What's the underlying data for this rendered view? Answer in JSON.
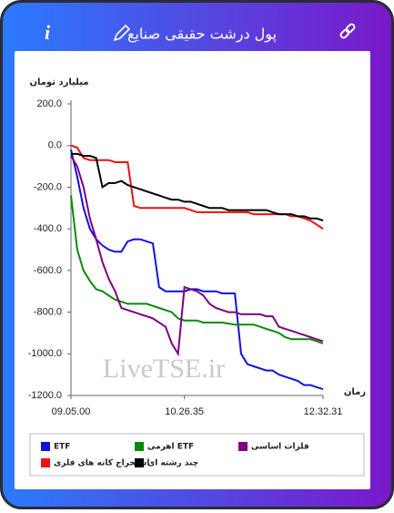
{
  "header": {
    "info": "i",
    "title": "پول درشت حقیقی صنایع"
  },
  "chart_data": {
    "type": "line",
    "ylabel": "میلیارد تومان",
    "xlabel": "زمان",
    "watermark": "LiveTSE.ir",
    "ylim": [
      -1200,
      200
    ],
    "yticks": [
      {
        "value": 200,
        "label": "200.0"
      },
      {
        "value": 0,
        "label": "0.0"
      },
      {
        "value": -200,
        "label": "-200.0"
      },
      {
        "value": -400,
        "label": "-400.0"
      },
      {
        "value": -600,
        "label": "-600.0"
      },
      {
        "value": -800,
        "label": "-800.0"
      },
      {
        "value": -1000,
        "label": "-1000.0"
      },
      {
        "value": -1200,
        "label": "-1200.0"
      }
    ],
    "categories": [
      "09.05.00",
      null,
      null,
      null,
      null,
      null,
      null,
      null,
      null,
      null,
      null,
      null,
      null,
      null,
      null,
      null,
      null,
      null,
      "10.26.35",
      null,
      null,
      null,
      null,
      null,
      null,
      null,
      null,
      null,
      null,
      null,
      null,
      null,
      null,
      null,
      null,
      null,
      null,
      null,
      null,
      null,
      "12.32.31"
    ],
    "grid": false,
    "series": [
      {
        "name": "ETF",
        "color": "#1010e0",
        "values": [
          -20,
          -150,
          -300,
          -400,
          -450,
          -480,
          -500,
          -510,
          -510,
          -460,
          -450,
          -450,
          -460,
          -470,
          -680,
          -700,
          -700,
          -700,
          -700,
          -690,
          -690,
          -700,
          -700,
          -700,
          -710,
          -710,
          -710,
          -1000,
          -1050,
          -1060,
          -1070,
          -1080,
          -1080,
          -1100,
          -1110,
          -1120,
          -1130,
          -1150,
          -1150,
          -1160,
          -1170
        ]
      },
      {
        "name": "اهرمی ETF",
        "color": "#0a8a0a",
        "values": [
          -240,
          -500,
          -600,
          -650,
          -690,
          -700,
          -720,
          -740,
          -750,
          -760,
          -760,
          -760,
          -760,
          -770,
          -780,
          -790,
          -800,
          -830,
          -840,
          -840,
          -840,
          -850,
          -850,
          -850,
          -850,
          -855,
          -860,
          -860,
          -860,
          -860,
          -870,
          -880,
          -890,
          -900,
          -920,
          -930,
          -930,
          -930,
          -930,
          -940,
          -950
        ]
      },
      {
        "name": "فلزات اساسی",
        "color": "#800080",
        "values": [
          -50,
          -100,
          -200,
          -350,
          -450,
          -560,
          -640,
          -700,
          -780,
          -790,
          -800,
          -810,
          -820,
          -830,
          -850,
          -870,
          -950,
          -1000,
          -680,
          -690,
          -700,
          -720,
          -760,
          -780,
          -790,
          -800,
          -800,
          -810,
          -810,
          -810,
          -810,
          -820,
          -820,
          -870,
          -880,
          -890,
          -900,
          -910,
          -920,
          -930,
          -940
        ]
      },
      {
        "name": "استخراج کانه های فلزی",
        "color": "#f01010",
        "values": [
          0,
          -10,
          -60,
          -70,
          -70,
          -70,
          -70,
          -80,
          -80,
          -80,
          -290,
          -300,
          -300,
          -300,
          -300,
          -300,
          -300,
          -300,
          -300,
          -310,
          -320,
          -320,
          -320,
          -320,
          -320,
          -320,
          -320,
          -320,
          -320,
          -330,
          -330,
          -330,
          -330,
          -330,
          -330,
          -340,
          -340,
          -350,
          -360,
          -380,
          -400
        ]
      },
      {
        "name": "چند رشته ای",
        "color": "#000000",
        "values": [
          -40,
          -40,
          -50,
          -50,
          -60,
          -200,
          -180,
          -180,
          -170,
          -190,
          -200,
          -210,
          -220,
          -230,
          -240,
          -250,
          -260,
          -260,
          -270,
          -270,
          -280,
          -290,
          -300,
          -300,
          -300,
          -310,
          -310,
          -310,
          -310,
          -310,
          -310,
          -310,
          -320,
          -330,
          -330,
          -330,
          -340,
          -340,
          -350,
          -350,
          -360
        ]
      }
    ]
  }
}
